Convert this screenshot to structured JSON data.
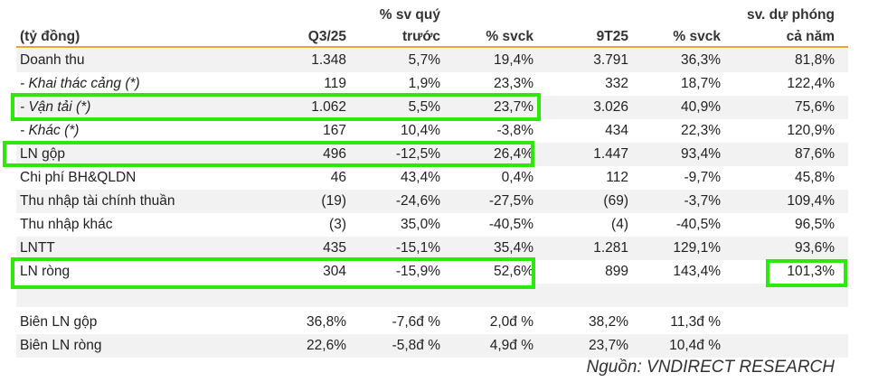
{
  "header": {
    "unit": "(tỷ đồng)",
    "columns": [
      {
        "line1": "",
        "line2": "Q3/25"
      },
      {
        "line1": "% sv quý",
        "line2": "trước"
      },
      {
        "line1": "",
        "line2": "% svck"
      },
      {
        "line1": "",
        "line2": "9T25"
      },
      {
        "line1": "",
        "line2": "% svck"
      },
      {
        "line1": "sv. dự  phóng",
        "line2": "cả năm"
      }
    ]
  },
  "rows": [
    {
      "label": "Doanh thu",
      "italic": false,
      "values": [
        "1.348",
        "5,7%",
        "19,4%",
        "3.791",
        "36,3%",
        "81,8%"
      ]
    },
    {
      "label": " - Khai thác cảng (*)",
      "italic": true,
      "values": [
        "119",
        "1,9%",
        "23,3%",
        "332",
        "18,7%",
        "122,4%"
      ]
    },
    {
      "label": " - Vận tải (*)",
      "italic": true,
      "values": [
        "1.062",
        "5,5%",
        "23,7%",
        "3.026",
        "40,9%",
        "75,6%"
      ]
    },
    {
      "label": " - Khác (*)",
      "italic": true,
      "values": [
        "167",
        "10,4%",
        "-3,8%",
        "434",
        "22,3%",
        "120,9%"
      ]
    },
    {
      "label": "LN gộp",
      "italic": false,
      "values": [
        "496",
        "-12,5%",
        "26,4%",
        "1.447",
        "93,4%",
        "87,6%"
      ]
    },
    {
      "label": "Chi phí BH&QLDN",
      "italic": false,
      "values": [
        "46",
        "43,4%",
        "0,4%",
        "112",
        "-9,7%",
        "45,8%"
      ]
    },
    {
      "label": "Thu nhập tài chính thuần",
      "italic": false,
      "values": [
        "(19)",
        "-24,6%",
        "-27,5%",
        "(69)",
        "-3,7%",
        "109,4%"
      ]
    },
    {
      "label": "Thu nhập khác",
      "italic": false,
      "values": [
        "(3)",
        "35,0%",
        "-40,5%",
        "(4)",
        "-40,5%",
        "96,5%"
      ]
    },
    {
      "label": "LNTT",
      "italic": false,
      "values": [
        "435",
        "-15,1%",
        "35,4%",
        "1.281",
        "129,1%",
        "93,6%"
      ]
    },
    {
      "label": "LN ròng",
      "italic": false,
      "values": [
        "304",
        "-15,9%",
        "52,6%",
        "899",
        "143,4%",
        "101,3%"
      ]
    },
    {
      "label": "",
      "italic": false,
      "values": [
        "",
        "",
        "",
        "",
        "",
        ""
      ]
    },
    {
      "label": "Biên LN gộp",
      "italic": false,
      "values": [
        "36,8%",
        "-7,6đ %",
        "2,0đ %",
        "38,2%",
        "11,3đ %",
        ""
      ]
    },
    {
      "label": "Biên LN ròng",
      "italic": false,
      "values": [
        "22,6%",
        "-5,8đ %",
        "4,9đ %",
        "23,7%",
        "10,4đ %",
        ""
      ]
    }
  ],
  "source": "Nguồn: VNDIRECT RESEARCH",
  "colors": {
    "rule": "#f0a32a",
    "highlight": "#2ee80c",
    "shade": "#f2f2f2"
  }
}
